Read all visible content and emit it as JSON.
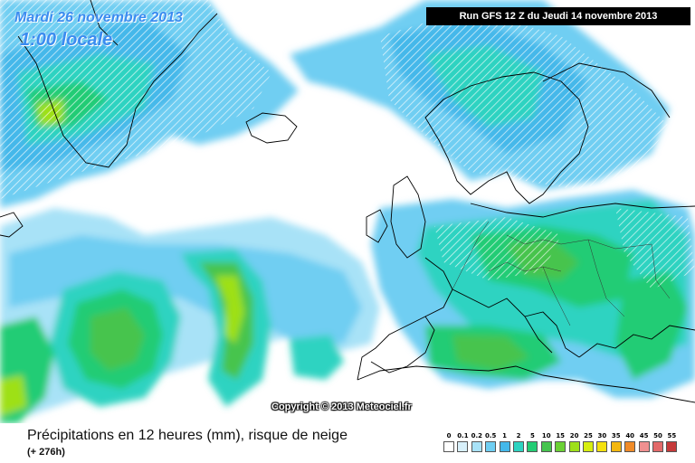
{
  "header": {
    "date": "Mardi 26 novembre 2013",
    "local_time": "1:00 locale",
    "run_info": "Run GFS 12 Z du Jeudi 14 novembre 2013"
  },
  "copyright": "Copyright © 2013 Meteociel.fr",
  "footer": {
    "caption": "Précipitations en 12 heures (mm), risque de neige",
    "lead_time": "(+ 276h)"
  },
  "legend": {
    "labels": [
      "0",
      "0.1",
      "0.2",
      "0.5",
      "1",
      "2",
      "5",
      "10",
      "15",
      "20",
      "25",
      "30",
      "35",
      "40",
      "45",
      "50",
      "55"
    ],
    "colors": [
      "#ffffff",
      "#d8f0fa",
      "#a8e2f7",
      "#6fcef2",
      "#44b8ea",
      "#2fd3c1",
      "#24cc74",
      "#46c44e",
      "#6bd135",
      "#9ee019",
      "#d7ee10",
      "#f4e10e",
      "#f4b70f",
      "#f08b28",
      "#f09090",
      "#e36a6a",
      "#c63a3a"
    ]
  },
  "colors": {
    "ocean": "#ffffff",
    "coastline": "#000000",
    "text_accent": "#3a8cf0"
  }
}
